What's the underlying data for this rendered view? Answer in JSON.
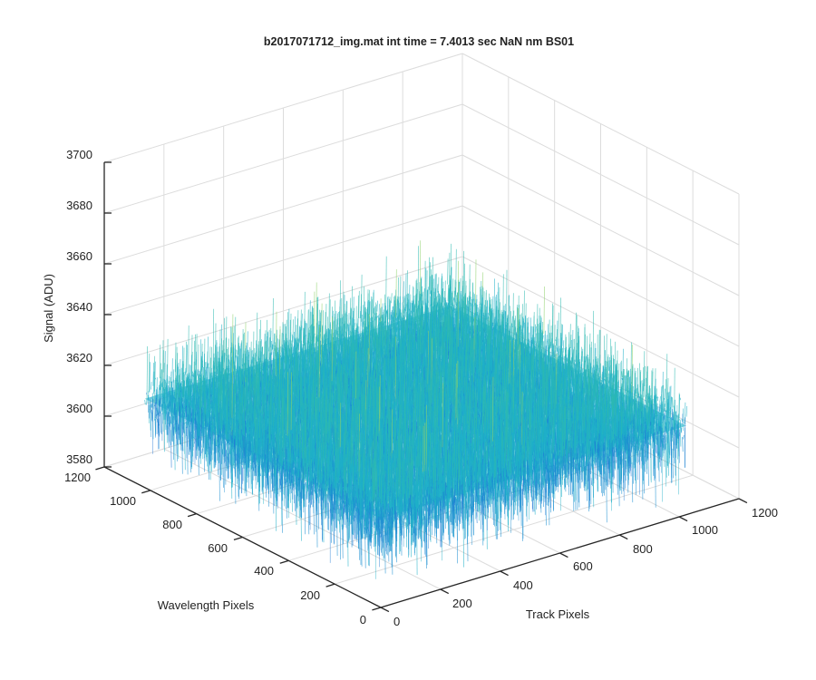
{
  "chart_data": {
    "type": "surface",
    "title": "b2017071712_img.mat int time = 7.4013 sec  NaN nm BS01",
    "xlabel": "Track Pixels",
    "ylabel": "Wavelength Pixels",
    "zlabel": "Signal (ADU)",
    "xlim": [
      0,
      1200
    ],
    "ylim": [
      0,
      1200
    ],
    "zlim": [
      3580,
      3700
    ],
    "x_ticks": [
      "0",
      "200",
      "400",
      "600",
      "800",
      "1000",
      "1200"
    ],
    "y_ticks": [
      "0",
      "200",
      "400",
      "600",
      "800",
      "1000",
      "1200"
    ],
    "z_ticks": [
      "3580",
      "3600",
      "3620",
      "3640",
      "3660",
      "3680",
      "3700"
    ],
    "surface": {
      "x_range": [
        0,
        1024
      ],
      "y_range": [
        0,
        1024
      ],
      "mean_signal": 3615,
      "noise_range": [
        3585,
        3660
      ]
    },
    "grid": true,
    "colormap": "parula",
    "colors": {
      "low": "#1f77d4",
      "mid": "#1fb0c8",
      "high": "#8fd26b"
    }
  }
}
